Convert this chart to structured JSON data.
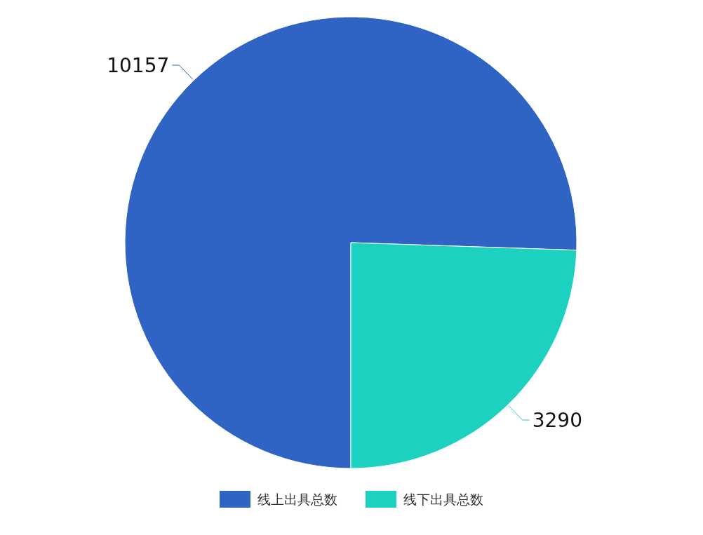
{
  "chart_data": {
    "type": "pie",
    "categories": [
      "线上出具总数",
      "线下出具总数"
    ],
    "values": [
      10157,
      3290
    ],
    "colors": [
      "#2f63c4",
      "#1dd1c1"
    ],
    "data_labels": true,
    "legend": "bottom"
  }
}
